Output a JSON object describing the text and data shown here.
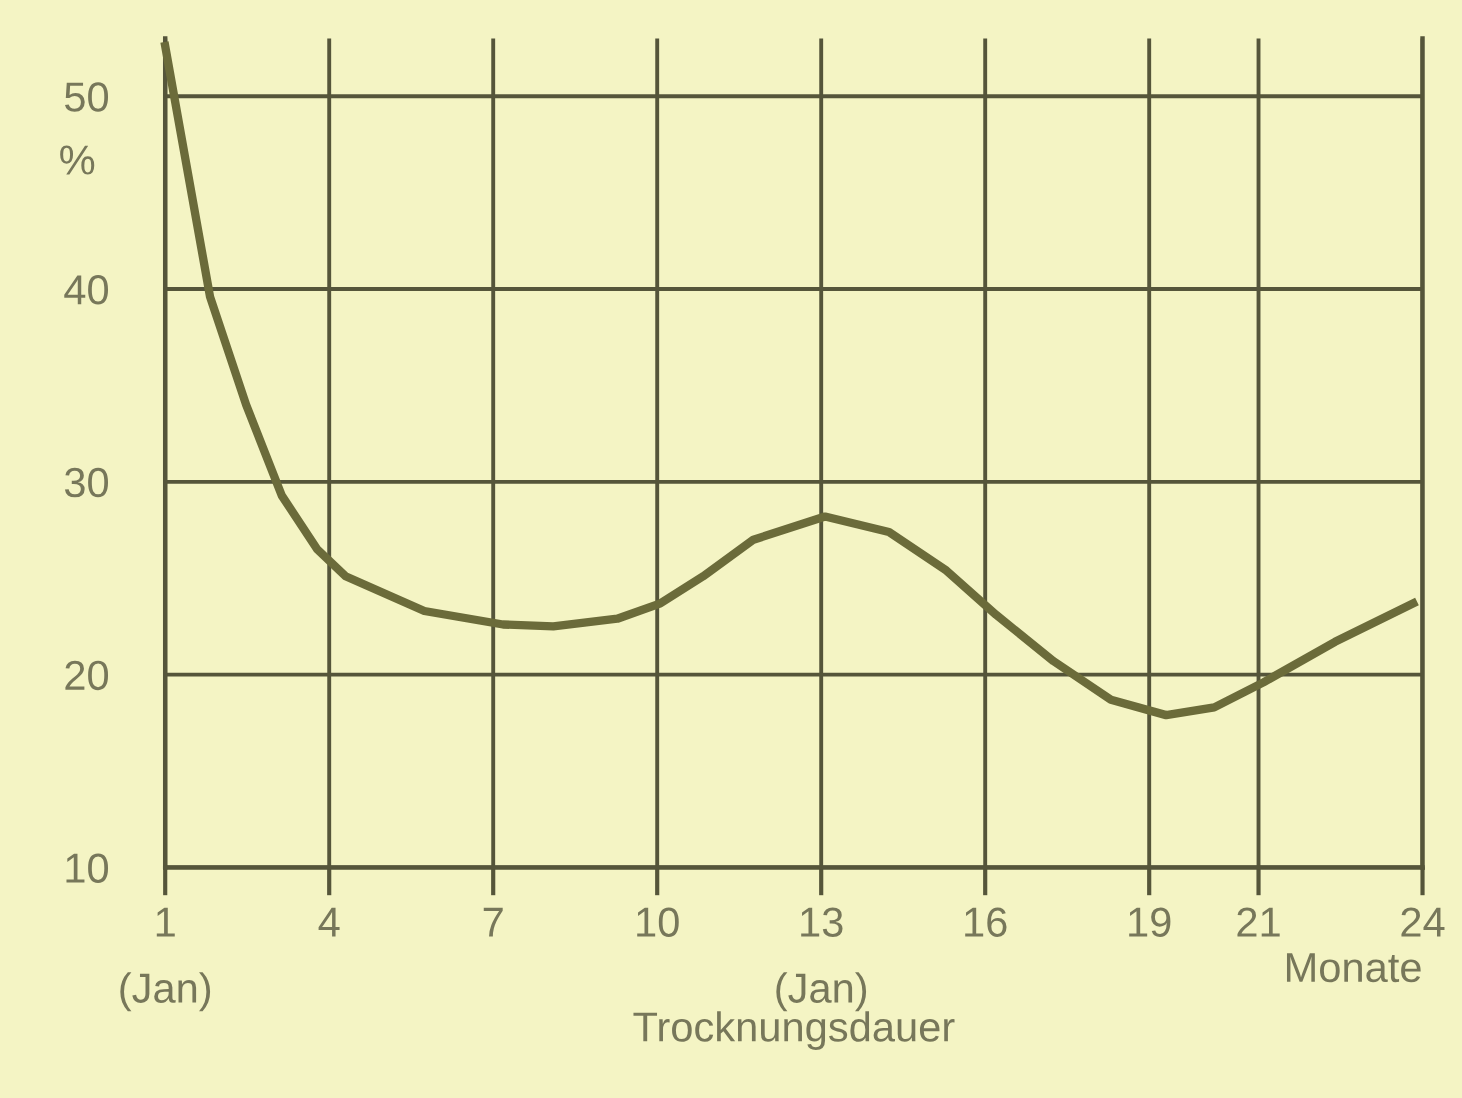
{
  "chart_data": {
    "type": "line",
    "xlabel": "Trocknungsdauer",
    "ylabel": "%",
    "x": [
      1.0,
      1.82,
      2.48,
      3.13,
      3.78,
      4.3,
      5.74,
      7.18,
      8.1,
      9.27,
      10.06,
      10.84,
      11.76,
      13.07,
      14.24,
      15.29,
      16.2,
      17.25,
      18.3,
      19.31,
      20.19,
      21.09,
      22.4,
      23.83
    ],
    "series": [
      {
        "color": "#6b6b3a",
        "values": [
          52.6,
          39.6,
          34.0,
          29.3,
          26.5,
          25.1,
          23.3,
          22.6,
          22.5,
          22.9,
          23.7,
          25.1,
          27.0,
          28.2,
          27.4,
          25.4,
          23.1,
          20.7,
          18.7,
          17.9,
          18.3,
          19.6,
          21.7,
          23.7
        ]
      }
    ],
    "xlim": [
      1,
      24
    ],
    "ylim": [
      10,
      53
    ],
    "xticks": [
      {
        "value": 1,
        "label": "1\n(Jan)"
      },
      4,
      7,
      10,
      {
        "value": 13,
        "label": "13\n(Jan)"
      },
      16,
      19,
      21,
      24
    ],
    "yticks": [
      10,
      20,
      30,
      40,
      50
    ],
    "annotations": [
      "Monate"
    ],
    "grid": true,
    "marker": "none",
    "line_style": "solid"
  }
}
